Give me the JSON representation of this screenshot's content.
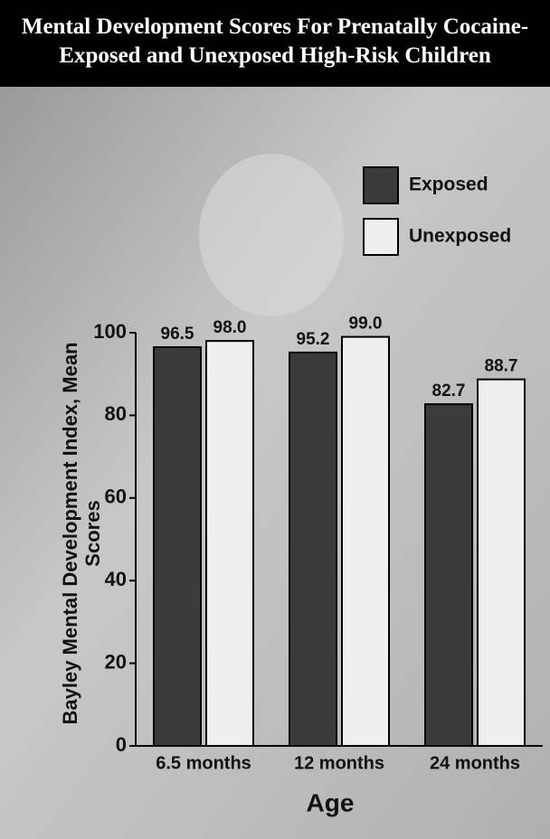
{
  "chart_data": {
    "type": "bar",
    "title": "Mental Development Scores For Prenatally Cocaine-Exposed and Unexposed High-Risk Children",
    "x_label": "Age",
    "y_label": "Bayley Mental Development Index, Mean Scores",
    "categories": [
      "6.5 months",
      "12 months",
      "24 months"
    ],
    "series": [
      {
        "name": "Exposed",
        "color": "#3b3b3b",
        "values": [
          96.5,
          95.2,
          82.7
        ],
        "value_labels": [
          "96.5",
          "95.2",
          "82.7"
        ]
      },
      {
        "name": "Unexposed",
        "color": "#efefef",
        "values": [
          98,
          99,
          88.7
        ],
        "value_labels": [
          "98.0",
          "99.0",
          "88.7"
        ]
      }
    ],
    "ylim": [
      0,
      100
    ],
    "yticks": [
      0,
      20,
      40,
      60,
      80,
      100
    ],
    "grid": false,
    "legend": "top-right"
  }
}
